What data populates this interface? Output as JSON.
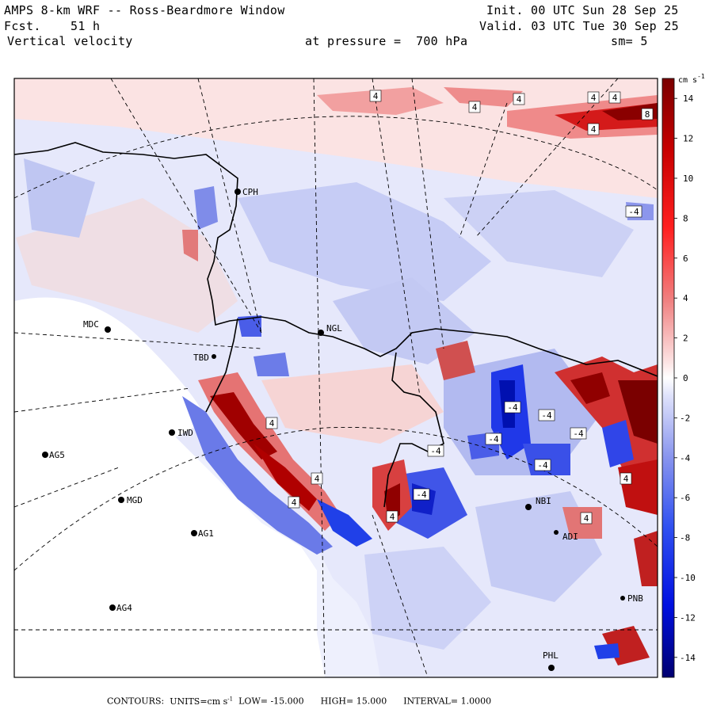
{
  "header": {
    "title": "AMPS 8-km WRF -- Ross-Beardmore Window",
    "forecast_label": "Fcst.",
    "forecast_hours": "51 h",
    "variable": "Vertical velocity",
    "init_time": "Init. 00 UTC Sun 28 Sep 25",
    "valid_time": "Valid. 03 UTC Tue 30 Sep 25",
    "pressure_label": "at pressure =",
    "pressure_value": "700 hPa",
    "smoothing": "sm= 5"
  },
  "colorbar": {
    "unit_label": "cm s",
    "unit_exponent": "-1",
    "ticks": [
      14,
      12,
      10,
      8,
      6,
      4,
      2,
      0,
      -2,
      -4,
      -6,
      -8,
      -10,
      -12,
      -14
    ],
    "range": [
      -15,
      15
    ],
    "colors": [
      "#d00000",
      "#ffffff",
      "#0000d0"
    ]
  },
  "stations": [
    {
      "id": "CPH",
      "name": "CPH"
    },
    {
      "id": "MDC",
      "name": "MDC"
    },
    {
      "id": "NGL",
      "name": "NGL"
    },
    {
      "id": "IWD",
      "name": "IWD"
    },
    {
      "id": "AG5",
      "name": "AG5"
    },
    {
      "id": "MGD",
      "name": "MGD"
    },
    {
      "id": "AG1",
      "name": "AG1"
    },
    {
      "id": "AG4",
      "name": "AG4"
    },
    {
      "id": "NBI",
      "name": "NBI"
    },
    {
      "id": "PHL",
      "name": "PHL"
    },
    {
      "id": "TBD",
      "name": "TBD"
    },
    {
      "id": "PNB",
      "name": "PNB"
    },
    {
      "id": "ADI",
      "name": "ADI"
    }
  ],
  "contour_labels": [
    "4",
    "4",
    "4",
    "4",
    "4",
    "8",
    "4",
    "-4",
    "4",
    "-4",
    "-4",
    "-4",
    "-4",
    "4",
    "4",
    "4",
    "-4",
    "4",
    "4",
    "-4",
    "-4"
  ],
  "footer": {
    "contours_label": "CONTOURS:",
    "units_label": "UNITS=cm s",
    "units_exponent": "-1",
    "low": "LOW= -15.000",
    "high": "HIGH= 15.000",
    "interval": "INTERVAL= 1.0000"
  }
}
